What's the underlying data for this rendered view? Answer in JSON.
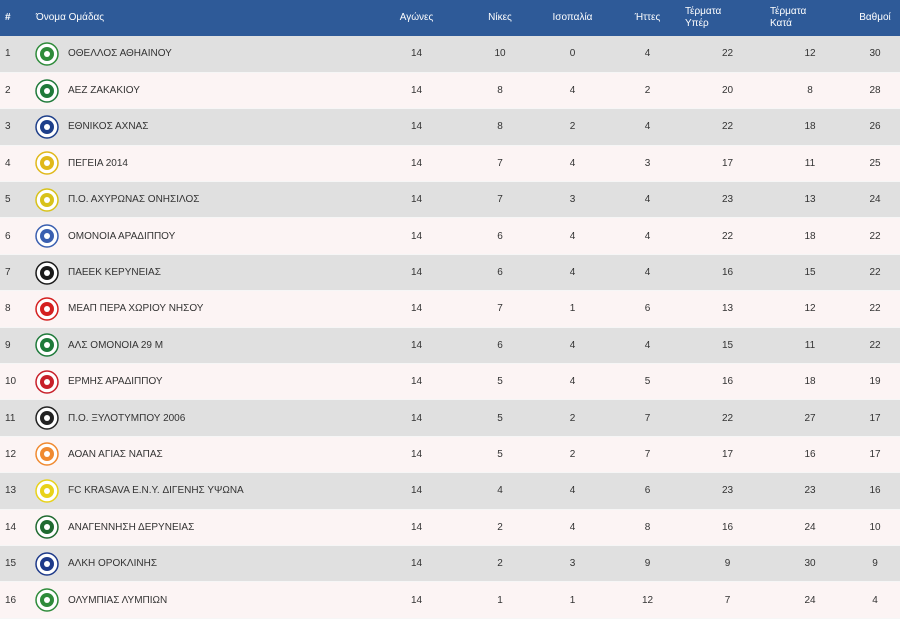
{
  "header": {
    "rank": "#",
    "team": "Όνομα Ομάδας",
    "games": "Αγώνες",
    "wins": "Νίκες",
    "draws": "Ισοπαλία",
    "losses": "Ήττες",
    "gf_line1": "Τέρματα",
    "gf_line2": "Υπέρ",
    "ga_line1": "Τέρματα",
    "ga_line2": "Κατά",
    "points": "Βαθμοί"
  },
  "colors": {
    "header_bg": "#2e5a98",
    "row_odd": "#e0e0e0",
    "row_even": "#fcf4f4"
  },
  "rows": [
    {
      "rank": "1",
      "team": "ΟΘΕΛΛΟΣ ΑΘΗΑΙΝΟΥ",
      "games": "14",
      "wins": "10",
      "draws": "0",
      "losses": "4",
      "gf": "22",
      "ga": "12",
      "points": "30",
      "logo": "othellos-crest-icon",
      "logo_color": "#2e8b3a"
    },
    {
      "rank": "2",
      "team": "ΑΕΖ ΖΑΚΑΚΙΟΥ",
      "games": "14",
      "wins": "8",
      "draws": "4",
      "losses": "2",
      "gf": "20",
      "ga": "8",
      "points": "28",
      "logo": "aez-crest-icon",
      "logo_color": "#1f7a3a"
    },
    {
      "rank": "3",
      "team": "ΕΘΝΙΚΟΣ ΑΧΝΑΣ",
      "games": "14",
      "wins": "8",
      "draws": "2",
      "losses": "4",
      "gf": "22",
      "ga": "18",
      "points": "26",
      "logo": "ethnikos-crest-icon",
      "logo_color": "#1e3f8a"
    },
    {
      "rank": "4",
      "team": "ΠΕΓΕΙΑ 2014",
      "games": "14",
      "wins": "7",
      "draws": "4",
      "losses": "3",
      "gf": "17",
      "ga": "11",
      "points": "25",
      "logo": "pegeia-crest-icon",
      "logo_color": "#e0b81a"
    },
    {
      "rank": "5",
      "team": "Π.Ο. ΑΧΥΡΩΝΑΣ ΟΝΗΣΙΛΟΣ",
      "games": "14",
      "wins": "7",
      "draws": "3",
      "losses": "4",
      "gf": "23",
      "ga": "13",
      "points": "24",
      "logo": "achyronas-crest-icon",
      "logo_color": "#d8c21a"
    },
    {
      "rank": "6",
      "team": "ΟΜΟΝΟΙΑ ΑΡΑΔΙΠΠΟΥ",
      "games": "14",
      "wins": "6",
      "draws": "4",
      "losses": "4",
      "gf": "22",
      "ga": "18",
      "points": "22",
      "logo": "omonoia-aradippou-crest-icon",
      "logo_color": "#3a5fb0"
    },
    {
      "rank": "7",
      "team": "ΠΑΕΕΚ ΚΕΡΥΝΕΙΑΣ",
      "games": "14",
      "wins": "6",
      "draws": "4",
      "losses": "4",
      "gf": "16",
      "ga": "15",
      "points": "22",
      "logo": "paeek-eagle-icon",
      "logo_color": "#1a1a1a"
    },
    {
      "rank": "8",
      "team": "ΜΕΑΠ ΠΕΡΑ ΧΩΡΙΟΥ ΝΗΣΟΥ",
      "games": "14",
      "wins": "7",
      "draws": "1",
      "losses": "6",
      "gf": "13",
      "ga": "12",
      "points": "22",
      "logo": "meap-crest-icon",
      "logo_color": "#d42020"
    },
    {
      "rank": "9",
      "team": "ΑΛΣ ΟΜΟΝΟΙΑ 29 Μ",
      "games": "14",
      "wins": "6",
      "draws": "4",
      "losses": "4",
      "gf": "15",
      "ga": "11",
      "points": "22",
      "logo": "als-omonoia-crest-icon",
      "logo_color": "#1e7a3a"
    },
    {
      "rank": "10",
      "team": "ΕΡΜΗΣ ΑΡΑΔΙΠΠΟΥ",
      "games": "14",
      "wins": "5",
      "draws": "4",
      "losses": "5",
      "gf": "16",
      "ga": "18",
      "points": "19",
      "logo": "ermis-crest-icon",
      "logo_color": "#c8202a"
    },
    {
      "rank": "11",
      "team": "Π.Ο. ΞΥΛΟΤΥΜΠΟΥ 2006",
      "games": "14",
      "wins": "5",
      "draws": "2",
      "losses": "7",
      "gf": "22",
      "ga": "27",
      "points": "17",
      "logo": "xylotympou-crest-icon",
      "logo_color": "#222222"
    },
    {
      "rank": "12",
      "team": "ΑΟΑΝ ΑΓΙΑΣ ΝΑΠΑΣ",
      "games": "14",
      "wins": "5",
      "draws": "2",
      "losses": "7",
      "gf": "17",
      "ga": "16",
      "points": "17",
      "logo": "aoan-crest-icon",
      "logo_color": "#f08a30"
    },
    {
      "rank": "13",
      "team": "FC KRASAVA E.N.Y. ΔΙΓΕΝΗΣ ΥΨΩΝΑ",
      "games": "14",
      "wins": "4",
      "draws": "4",
      "losses": "6",
      "gf": "23",
      "ga": "23",
      "points": "16",
      "logo": "krasava-crest-icon",
      "logo_color": "#e8d21a"
    },
    {
      "rank": "14",
      "team": "ΑΝΑΓΕΝΝΗΣΗ ΔΕΡΥΝΕΙΑΣ",
      "games": "14",
      "wins": "2",
      "draws": "4",
      "losses": "8",
      "gf": "16",
      "ga": "24",
      "points": "10",
      "logo": "anagennisi-crest-icon",
      "logo_color": "#1f6a30"
    },
    {
      "rank": "15",
      "team": "ΑΛΚΗ ΟΡΟΚΛΙΝΗΣ",
      "games": "14",
      "wins": "2",
      "draws": "3",
      "losses": "9",
      "gf": "9",
      "ga": "30",
      "points": "9",
      "logo": "alki-crest-icon",
      "logo_color": "#1e3a8a"
    },
    {
      "rank": "16",
      "team": "ΟΛΥΜΠΙΑΣ ΛΥΜΠΙΩΝ",
      "games": "14",
      "wins": "1",
      "draws": "1",
      "losses": "12",
      "gf": "7",
      "ga": "24",
      "points": "4",
      "logo": "olympias-crest-icon",
      "logo_color": "#2e8b3a"
    }
  ]
}
